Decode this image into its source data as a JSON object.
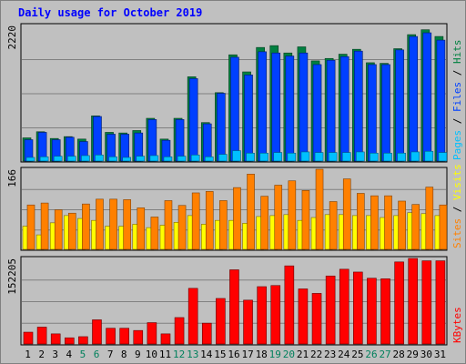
{
  "chart_data": {
    "type": "bar",
    "title": "Daily usage for October 2019",
    "categories": [
      "1",
      "2",
      "3",
      "4",
      "5",
      "6",
      "7",
      "8",
      "9",
      "10",
      "11",
      "12",
      "13",
      "14",
      "15",
      "16",
      "17",
      "18",
      "19",
      "20",
      "21",
      "22",
      "23",
      "24",
      "25",
      "26",
      "27",
      "28",
      "29",
      "30",
      "31"
    ],
    "weekend_days": [
      "5",
      "6",
      "12",
      "13",
      "19",
      "20",
      "26",
      "27"
    ],
    "colors": {
      "title": "#0000ff",
      "background": "#c0c0c0",
      "grid": "#808080",
      "hits": "#008040",
      "files": "#0040ff",
      "pages": "#00c0ff",
      "visits": "#ffff00",
      "sites": "#ff8000",
      "kbytes": "#ff0000",
      "weekday_label": "#000000",
      "weekend_label": "#00805c"
    },
    "panels": [
      {
        "id": "hits_files_pages",
        "ymax_label": "2220",
        "ylim": [
          0,
          2220
        ],
        "legend": [
          "Pages",
          " / ",
          "Files",
          " / ",
          "Hits"
        ],
        "series": [
          {
            "name": "Hits",
            "values": [
              380,
              480,
              370,
              400,
              360,
              740,
              470,
              460,
              500,
              700,
              360,
              700,
              1380,
              630,
              1120,
              1740,
              1460,
              1860,
              1890,
              1770,
              1870,
              1640,
              1680,
              1750,
              1830,
              1610,
              1600,
              1840,
              2070,
              2150,
              2040
            ]
          },
          {
            "name": "Files",
            "values": [
              350,
              470,
              350,
              390,
              320,
              730,
              440,
              440,
              460,
              680,
              340,
              680,
              1350,
              610,
              1110,
              1700,
              1410,
              1790,
              1770,
              1720,
              1770,
              1580,
              1650,
              1710,
              1800,
              1580,
              1580,
              1820,
              2040,
              2100,
              1980
            ]
          },
          {
            "name": "Pages",
            "values": [
              60,
              70,
              80,
              80,
              90,
              100,
              70,
              60,
              80,
              90,
              70,
              80,
              100,
              70,
              110,
              170,
              130,
              130,
              140,
              130,
              150,
              140,
              140,
              140,
              150,
              130,
              130,
              130,
              150,
              160,
              140
            ]
          }
        ]
      },
      {
        "id": "visits_sites",
        "ymax_label": "166",
        "ylim": [
          0,
          166
        ],
        "legend": [
          "Sites",
          " / ",
          "Visits"
        ],
        "series": [
          {
            "name": "Visits",
            "values": [
              48,
              30,
              55,
              70,
              64,
              60,
              48,
              48,
              52,
              45,
              50,
              56,
              70,
              52,
              60,
              60,
              54,
              68,
              70,
              72,
              60,
              66,
              72,
              72,
              70,
              70,
              66,
              70,
              76,
              74,
              70
            ]
          },
          {
            "name": "Sites",
            "values": [
              92,
              96,
              82,
              75,
              94,
              104,
              104,
              103,
              86,
              67,
              101,
              91,
              117,
              120,
              101,
              128,
              156,
              110,
              133,
              142,
              122,
              166,
              99,
              146,
              116,
              111,
              111,
              100,
              93,
              129,
              92
            ]
          }
        ]
      },
      {
        "id": "kbytes",
        "ymax_label": "152205",
        "ylim": [
          0,
          152205
        ],
        "legend": [
          "KBytes"
        ],
        "series": [
          {
            "name": "KBytes",
            "values": [
              21000,
              30000,
              18000,
              11000,
              13000,
              43000,
              28000,
              28000,
              24000,
              38000,
              18000,
              47000,
              99000,
              37000,
              81000,
              132000,
              78000,
              102000,
              104000,
              139000,
              98000,
              90000,
              121000,
              133000,
              128000,
              117000,
              116000,
              146000,
              153000,
              148000,
              148000
            ]
          }
        ]
      }
    ]
  }
}
